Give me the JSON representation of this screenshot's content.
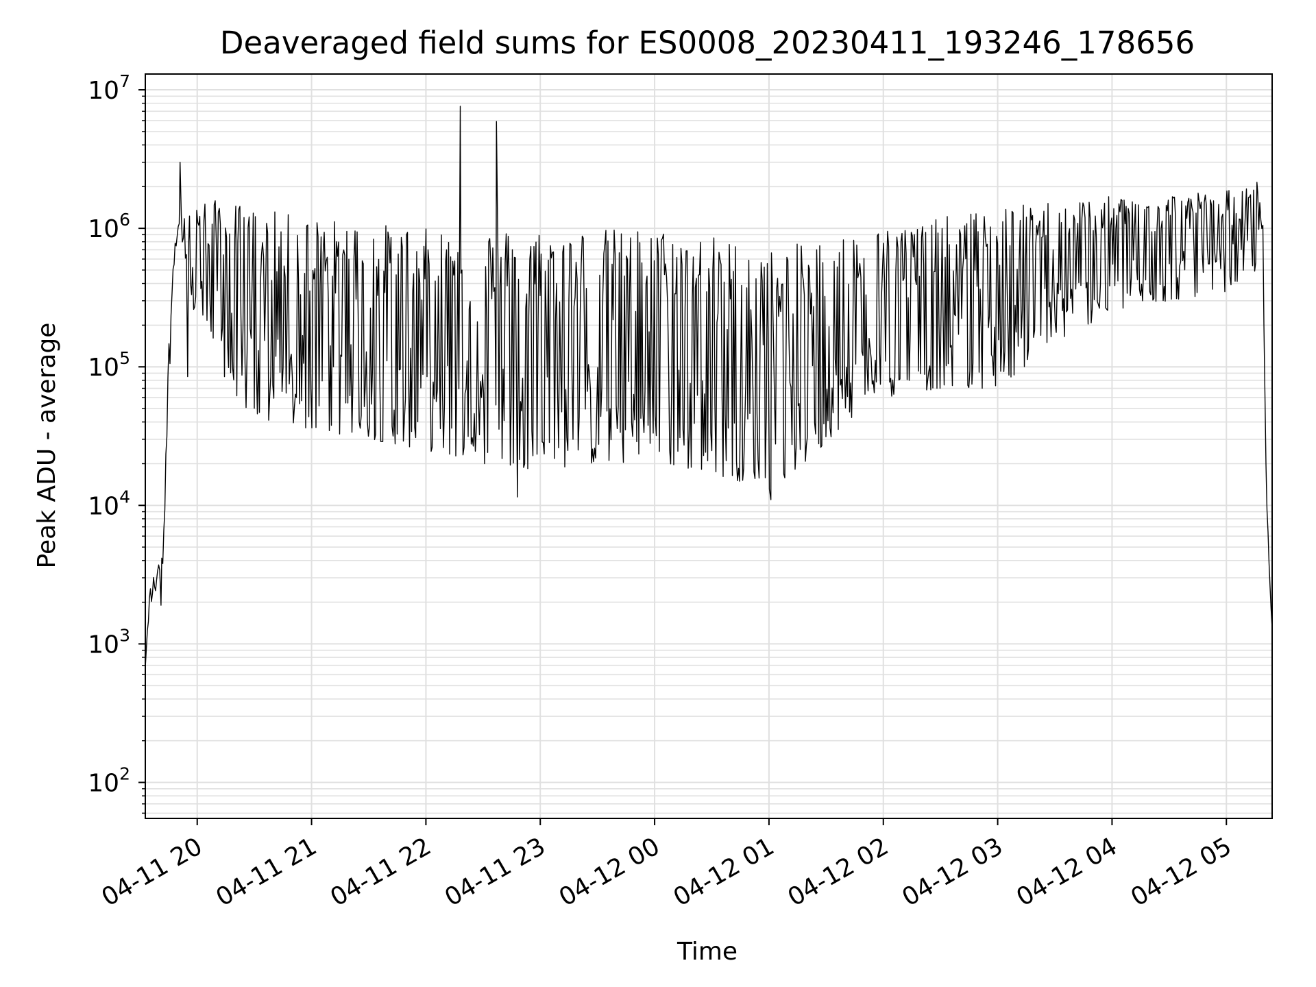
{
  "chart_data": {
    "type": "line",
    "title": "Deaveraged field sums for ES0008_20230411_193246_178656",
    "xlabel": "Time",
    "ylabel": "Peak ADU - average",
    "yscale": "log",
    "ylim": [
      55,
      13000000
    ],
    "xlim": [
      "2023-04-11 19:32:46",
      "2023-04-12 05:24:00"
    ],
    "grid": true,
    "line_color": "#000000",
    "grid_color": "#e0e0e0",
    "x_ticks": [
      {
        "label": "04-11 20",
        "time": "2023-04-11 20:00"
      },
      {
        "label": "04-11 21",
        "time": "2023-04-11 21:00"
      },
      {
        "label": "04-11 22",
        "time": "2023-04-11 22:00"
      },
      {
        "label": "04-11 23",
        "time": "2023-04-11 23:00"
      },
      {
        "label": "04-12 00",
        "time": "2023-04-12 00:00"
      },
      {
        "label": "04-12 01",
        "time": "2023-04-12 01:00"
      },
      {
        "label": "04-12 02",
        "time": "2023-04-12 02:00"
      },
      {
        "label": "04-12 03",
        "time": "2023-04-12 03:00"
      },
      {
        "label": "04-12 04",
        "time": "2023-04-12 04:00"
      },
      {
        "label": "04-12 05",
        "time": "2023-04-12 05:00"
      }
    ],
    "y_ticks": [
      {
        "base": "10",
        "exp": "2",
        "value": 100
      },
      {
        "base": "10",
        "exp": "3",
        "value": 1000
      },
      {
        "base": "10",
        "exp": "4",
        "value": 10000
      },
      {
        "base": "10",
        "exp": "5",
        "value": 100000
      },
      {
        "base": "10",
        "exp": "6",
        "value": 1000000
      },
      {
        "base": "10",
        "exp": "7",
        "value": 10000000
      }
    ],
    "envelope": [
      {
        "t": "2023-04-11 19:32:46",
        "low": 500,
        "high": 800
      },
      {
        "t": "2023-04-11 19:35",
        "low": 1800,
        "high": 2600
      },
      {
        "t": "2023-04-11 19:40",
        "low": 2600,
        "high": 4000
      },
      {
        "t": "2023-04-11 19:42",
        "low": 3500,
        "high": 5000
      },
      {
        "t": "2023-04-11 19:45",
        "low": 60000,
        "high": 150000
      },
      {
        "t": "2023-04-11 19:48",
        "low": 600000,
        "high": 1100000
      },
      {
        "t": "2023-04-11 19:52",
        "low": 700000,
        "high": 1500000
      },
      {
        "t": "2023-04-11 19:55",
        "low": 250000,
        "high": 1600000
      },
      {
        "t": "2023-04-11 20:00",
        "low": 250000,
        "high": 1600000
      },
      {
        "t": "2023-04-11 20:15",
        "low": 80000,
        "high": 1600000
      },
      {
        "t": "2023-04-11 20:30",
        "low": 40000,
        "high": 1400000
      },
      {
        "t": "2023-04-11 21:00",
        "low": 35000,
        "high": 1200000
      },
      {
        "t": "2023-04-11 21:30",
        "low": 30000,
        "high": 1100000
      },
      {
        "t": "2023-04-11 22:00",
        "low": 25000,
        "high": 1000000
      },
      {
        "t": "2023-04-11 22:30",
        "low": 20000,
        "high": 1000000
      },
      {
        "t": "2023-04-11 23:00",
        "low": 18000,
        "high": 1000000
      },
      {
        "t": "2023-04-11 23:30",
        "low": 20000,
        "high": 1000000
      },
      {
        "t": "2023-04-12 00:00",
        "low": 20000,
        "high": 1000000
      },
      {
        "t": "2023-04-12 00:30",
        "low": 17000,
        "high": 900000
      },
      {
        "t": "2023-04-12 01:00",
        "low": 13000,
        "high": 700000
      },
      {
        "t": "2023-04-12 01:20",
        "low": 20000,
        "high": 800000
      },
      {
        "t": "2023-04-12 01:40",
        "low": 40000,
        "high": 900000
      },
      {
        "t": "2023-04-12 02:00",
        "low": 60000,
        "high": 1000000
      },
      {
        "t": "2023-04-12 02:30",
        "low": 70000,
        "high": 1200000
      },
      {
        "t": "2023-04-12 03:00",
        "low": 70000,
        "high": 1400000
      },
      {
        "t": "2023-04-12 03:30",
        "low": 150000,
        "high": 1600000
      },
      {
        "t": "2023-04-12 04:00",
        "low": 250000,
        "high": 1700000
      },
      {
        "t": "2023-04-12 04:30",
        "low": 300000,
        "high": 1800000
      },
      {
        "t": "2023-04-12 05:00",
        "low": 350000,
        "high": 1900000
      },
      {
        "t": "2023-04-12 05:16",
        "low": 500000,
        "high": 2000000
      },
      {
        "t": "2023-04-12 05:19",
        "low": 900000,
        "high": 2000000
      },
      {
        "t": "2023-04-12 05:21",
        "low": 8000,
        "high": 12000
      },
      {
        "t": "2023-04-12 05:22",
        "low": 4000,
        "high": 6000
      },
      {
        "t": "2023-04-12 05:24",
        "low": 1300,
        "high": 1300
      }
    ],
    "spikes": [
      {
        "t": "2023-04-11 19:51",
        "value": 3000000
      },
      {
        "t": "2023-04-11 22:18",
        "value": 7600000
      },
      {
        "t": "2023-04-11 22:37",
        "value": 5900000
      },
      {
        "t": "2023-04-12 05:16",
        "value": 2150000
      }
    ],
    "dips": [
      {
        "t": "2023-04-11 19:41",
        "value": 1900
      },
      {
        "t": "2023-04-11 19:55",
        "value": 85000
      },
      {
        "t": "2023-04-11 22:48",
        "value": 11500
      },
      {
        "t": "2023-04-12 01:01",
        "value": 11000
      }
    ]
  }
}
